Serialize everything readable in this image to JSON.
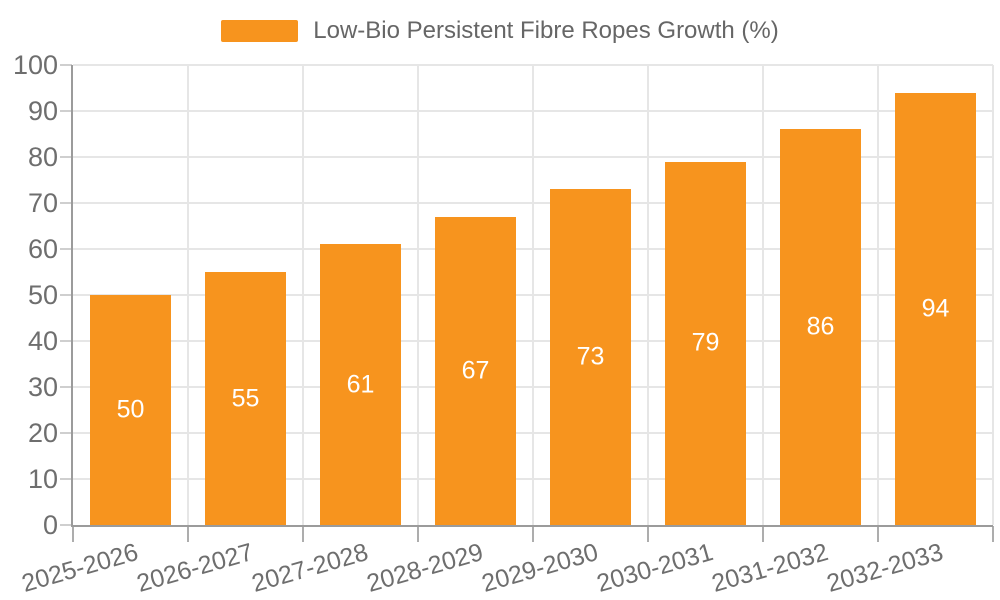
{
  "chart_data": {
    "type": "bar",
    "legend_label": "Low-Bio Persistent Fibre Ropes Growth (%)",
    "legend_position": "top-center",
    "categories": [
      "2025-2026",
      "2026-2027",
      "2027-2028",
      "2028-2029",
      "2029-2030",
      "2030-2031",
      "2031-2032",
      "2032-2033"
    ],
    "values": [
      50,
      55,
      61,
      67,
      73,
      79,
      86,
      94
    ],
    "value_labels_position": "inside-center",
    "xlabel": "",
    "ylabel": "",
    "ylim": [
      0,
      100
    ],
    "yticks": [
      0,
      10,
      20,
      30,
      40,
      50,
      60,
      70,
      80,
      90,
      100
    ],
    "grid": "horizontal and vertical light gray gridlines",
    "x_label_rotation_deg": -16,
    "colors": {
      "bar": "#F7941E",
      "value_label": "#FFFFFF",
      "axis_line": "#9B9B9B",
      "grid_line": "#E6E6E6",
      "tick_label": "#6E6E6E",
      "legend_text": "#666666",
      "background": "#FFFFFF"
    }
  }
}
